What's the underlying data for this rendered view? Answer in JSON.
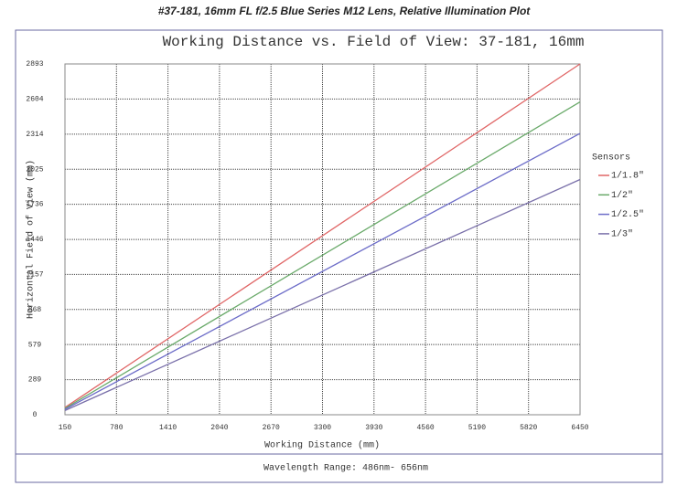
{
  "header": "#37-181, 16mm FL f/2.5 Blue Series M12 Lens, Relative Illumination Plot",
  "footer": "Wavelength Range:  486nm- 656nm",
  "chart_data": {
    "type": "line",
    "title": "Working Distance vs. Field of View: 37-181, 16mm",
    "x_label": "Working Distance (mm)",
    "y_label": "Horizontal Field of View (mm)",
    "legend_title": "Sensors",
    "legend_position": "right",
    "grid": true,
    "x": [
      150,
      6450
    ],
    "xlim": [
      150,
      6450
    ],
    "xticks": [
      150,
      780,
      1410,
      2040,
      2670,
      3300,
      3930,
      4560,
      5190,
      5820,
      6450
    ],
    "ylim": [
      0,
      2893
    ],
    "yticks": [
      0,
      289,
      579,
      868,
      1157,
      1446,
      1736,
      2025,
      2314,
      2604,
      2893
    ],
    "series": [
      {
        "name": "1/1.8\"",
        "color": "#e06666",
        "values": [
          60,
          2893
        ]
      },
      {
        "name": "1/2\"",
        "color": "#6aaa6a",
        "values": [
          52,
          2580
        ]
      },
      {
        "name": "1/2.5\"",
        "color": "#6c6cc8",
        "values": [
          45,
          2320
        ]
      },
      {
        "name": "1/3\"",
        "color": "#7a70aa",
        "values": [
          35,
          1940
        ]
      }
    ]
  }
}
